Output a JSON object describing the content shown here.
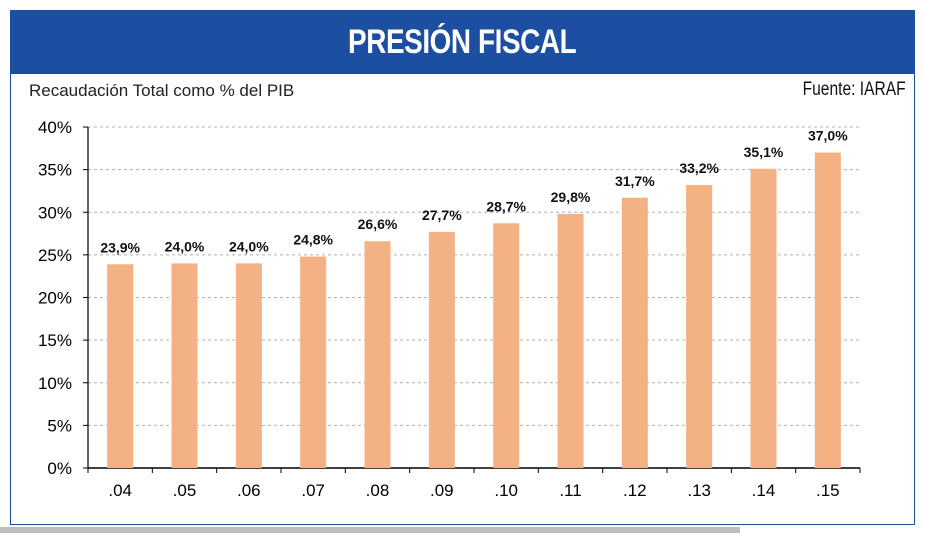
{
  "header": {
    "title": "PRESIÓN FISCAL",
    "subtitle": "Recaudación Total como % del PIB",
    "source": "Fuente: IARAF"
  },
  "colors": {
    "title_bg": "#1c4fa1",
    "bar": "#f4b183",
    "grid": "#b0b0b0",
    "axis": "#000000"
  },
  "chart_data": {
    "type": "bar",
    "title": "PRESIÓN FISCAL",
    "subtitle": "Recaudación Total como % del PIB",
    "categories": [
      ".04",
      ".05",
      ".06",
      ".07",
      ".08",
      ".09",
      ".10",
      ".11",
      ".12",
      ".13",
      ".14",
      ".15"
    ],
    "values": [
      23.9,
      24.0,
      24.0,
      24.8,
      26.6,
      27.7,
      28.7,
      29.8,
      31.7,
      33.2,
      35.1,
      37.0
    ],
    "data_labels": [
      "23,9%",
      "24,0%",
      "24,0%",
      "24,8%",
      "26,6%",
      "27,7%",
      "28,7%",
      "29,8%",
      "31,7%",
      "33,2%",
      "35,1%",
      "37,0%"
    ],
    "yticks": [
      0,
      5,
      10,
      15,
      20,
      25,
      30,
      35,
      40
    ],
    "ytick_labels": [
      "0%",
      "5%",
      "10%",
      "15%",
      "20%",
      "25%",
      "30%",
      "35%",
      "40%"
    ],
    "ylim": [
      0,
      40
    ],
    "xlabel": "",
    "ylabel": "",
    "grid": "horizontal dashed",
    "legend": "none"
  }
}
